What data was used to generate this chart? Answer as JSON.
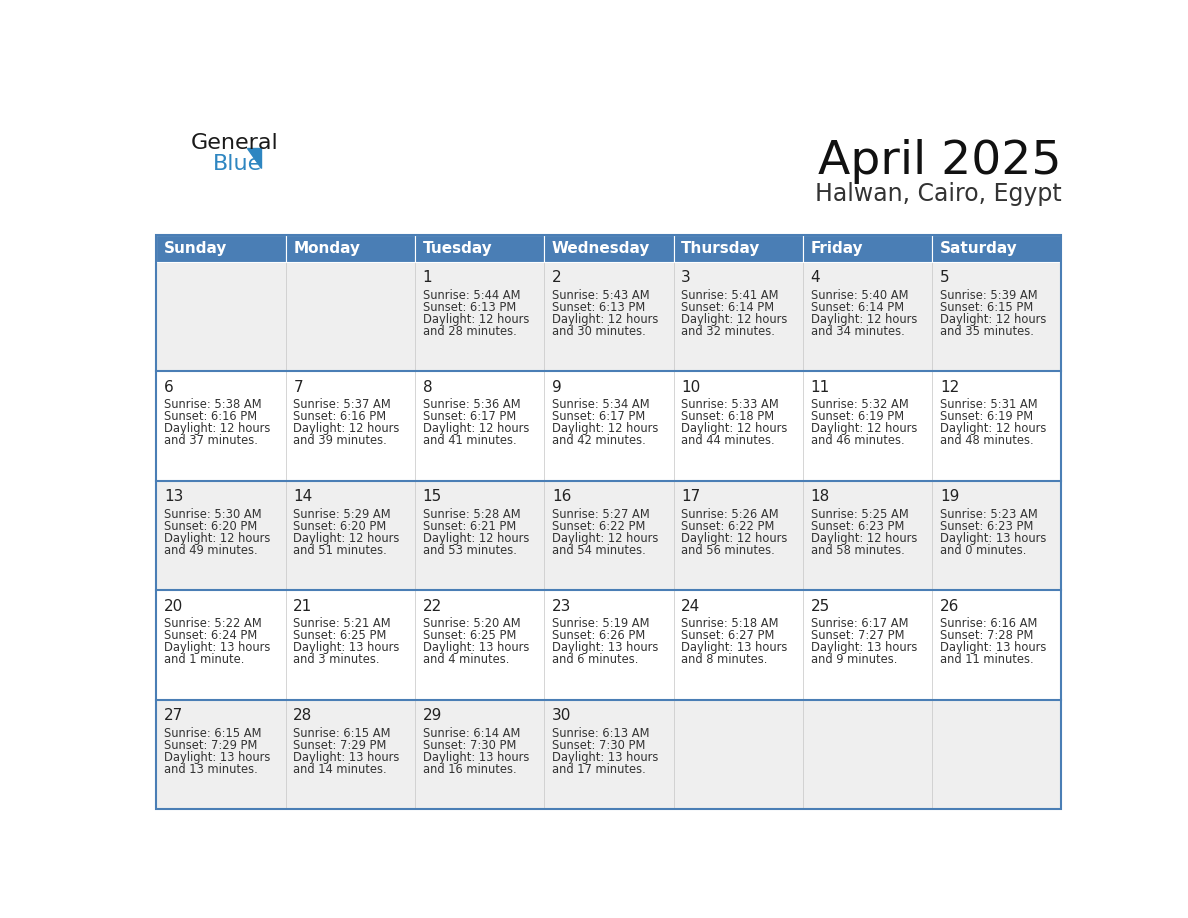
{
  "title": "April 2025",
  "subtitle": "Halwan, Cairo, Egypt",
  "header_bg": "#4A7EB5",
  "header_text_color": "#FFFFFF",
  "row_separator_color": "#4A7EB5",
  "cell_bg_light": "#EFEFEF",
  "cell_bg_white": "#FFFFFF",
  "cell_border_color": "#CCCCCC",
  "text_color": "#333333",
  "day_num_color": "#222222",
  "day_headers": [
    "Sunday",
    "Monday",
    "Tuesday",
    "Wednesday",
    "Thursday",
    "Friday",
    "Saturday"
  ],
  "weeks": [
    [
      {
        "day": "",
        "sunrise": "",
        "sunset": "",
        "daylight": ""
      },
      {
        "day": "",
        "sunrise": "",
        "sunset": "",
        "daylight": ""
      },
      {
        "day": "1",
        "sunrise": "5:44 AM",
        "sunset": "6:13 PM",
        "daylight": "12 hours\nand 28 minutes."
      },
      {
        "day": "2",
        "sunrise": "5:43 AM",
        "sunset": "6:13 PM",
        "daylight": "12 hours\nand 30 minutes."
      },
      {
        "day": "3",
        "sunrise": "5:41 AM",
        "sunset": "6:14 PM",
        "daylight": "12 hours\nand 32 minutes."
      },
      {
        "day": "4",
        "sunrise": "5:40 AM",
        "sunset": "6:14 PM",
        "daylight": "12 hours\nand 34 minutes."
      },
      {
        "day": "5",
        "sunrise": "5:39 AM",
        "sunset": "6:15 PM",
        "daylight": "12 hours\nand 35 minutes."
      }
    ],
    [
      {
        "day": "6",
        "sunrise": "5:38 AM",
        "sunset": "6:16 PM",
        "daylight": "12 hours\nand 37 minutes."
      },
      {
        "day": "7",
        "sunrise": "5:37 AM",
        "sunset": "6:16 PM",
        "daylight": "12 hours\nand 39 minutes."
      },
      {
        "day": "8",
        "sunrise": "5:36 AM",
        "sunset": "6:17 PM",
        "daylight": "12 hours\nand 41 minutes."
      },
      {
        "day": "9",
        "sunrise": "5:34 AM",
        "sunset": "6:17 PM",
        "daylight": "12 hours\nand 42 minutes."
      },
      {
        "day": "10",
        "sunrise": "5:33 AM",
        "sunset": "6:18 PM",
        "daylight": "12 hours\nand 44 minutes."
      },
      {
        "day": "11",
        "sunrise": "5:32 AM",
        "sunset": "6:19 PM",
        "daylight": "12 hours\nand 46 minutes."
      },
      {
        "day": "12",
        "sunrise": "5:31 AM",
        "sunset": "6:19 PM",
        "daylight": "12 hours\nand 48 minutes."
      }
    ],
    [
      {
        "day": "13",
        "sunrise": "5:30 AM",
        "sunset": "6:20 PM",
        "daylight": "12 hours\nand 49 minutes."
      },
      {
        "day": "14",
        "sunrise": "5:29 AM",
        "sunset": "6:20 PM",
        "daylight": "12 hours\nand 51 minutes."
      },
      {
        "day": "15",
        "sunrise": "5:28 AM",
        "sunset": "6:21 PM",
        "daylight": "12 hours\nand 53 minutes."
      },
      {
        "day": "16",
        "sunrise": "5:27 AM",
        "sunset": "6:22 PM",
        "daylight": "12 hours\nand 54 minutes."
      },
      {
        "day": "17",
        "sunrise": "5:26 AM",
        "sunset": "6:22 PM",
        "daylight": "12 hours\nand 56 minutes."
      },
      {
        "day": "18",
        "sunrise": "5:25 AM",
        "sunset": "6:23 PM",
        "daylight": "12 hours\nand 58 minutes."
      },
      {
        "day": "19",
        "sunrise": "5:23 AM",
        "sunset": "6:23 PM",
        "daylight": "13 hours\nand 0 minutes."
      }
    ],
    [
      {
        "day": "20",
        "sunrise": "5:22 AM",
        "sunset": "6:24 PM",
        "daylight": "13 hours\nand 1 minute."
      },
      {
        "day": "21",
        "sunrise": "5:21 AM",
        "sunset": "6:25 PM",
        "daylight": "13 hours\nand 3 minutes."
      },
      {
        "day": "22",
        "sunrise": "5:20 AM",
        "sunset": "6:25 PM",
        "daylight": "13 hours\nand 4 minutes."
      },
      {
        "day": "23",
        "sunrise": "5:19 AM",
        "sunset": "6:26 PM",
        "daylight": "13 hours\nand 6 minutes."
      },
      {
        "day": "24",
        "sunrise": "5:18 AM",
        "sunset": "6:27 PM",
        "daylight": "13 hours\nand 8 minutes."
      },
      {
        "day": "25",
        "sunrise": "6:17 AM",
        "sunset": "7:27 PM",
        "daylight": "13 hours\nand 9 minutes."
      },
      {
        "day": "26",
        "sunrise": "6:16 AM",
        "sunset": "7:28 PM",
        "daylight": "13 hours\nand 11 minutes."
      }
    ],
    [
      {
        "day": "27",
        "sunrise": "6:15 AM",
        "sunset": "7:29 PM",
        "daylight": "13 hours\nand 13 minutes."
      },
      {
        "day": "28",
        "sunrise": "6:15 AM",
        "sunset": "7:29 PM",
        "daylight": "13 hours\nand 14 minutes."
      },
      {
        "day": "29",
        "sunrise": "6:14 AM",
        "sunset": "7:30 PM",
        "daylight": "13 hours\nand 16 minutes."
      },
      {
        "day": "30",
        "sunrise": "6:13 AM",
        "sunset": "7:30 PM",
        "daylight": "13 hours\nand 17 minutes."
      },
      {
        "day": "",
        "sunrise": "",
        "sunset": "",
        "daylight": ""
      },
      {
        "day": "",
        "sunrise": "",
        "sunset": "",
        "daylight": ""
      },
      {
        "day": "",
        "sunrise": "",
        "sunset": "",
        "daylight": ""
      }
    ]
  ],
  "logo_text1": "General",
  "logo_text2": "Blue",
  "logo_color1": "#1a1a1a",
  "logo_color2": "#2E86C1",
  "logo_triangle_color": "#2E86C1",
  "fig_width": 11.88,
  "fig_height": 9.18,
  "dpi": 100
}
